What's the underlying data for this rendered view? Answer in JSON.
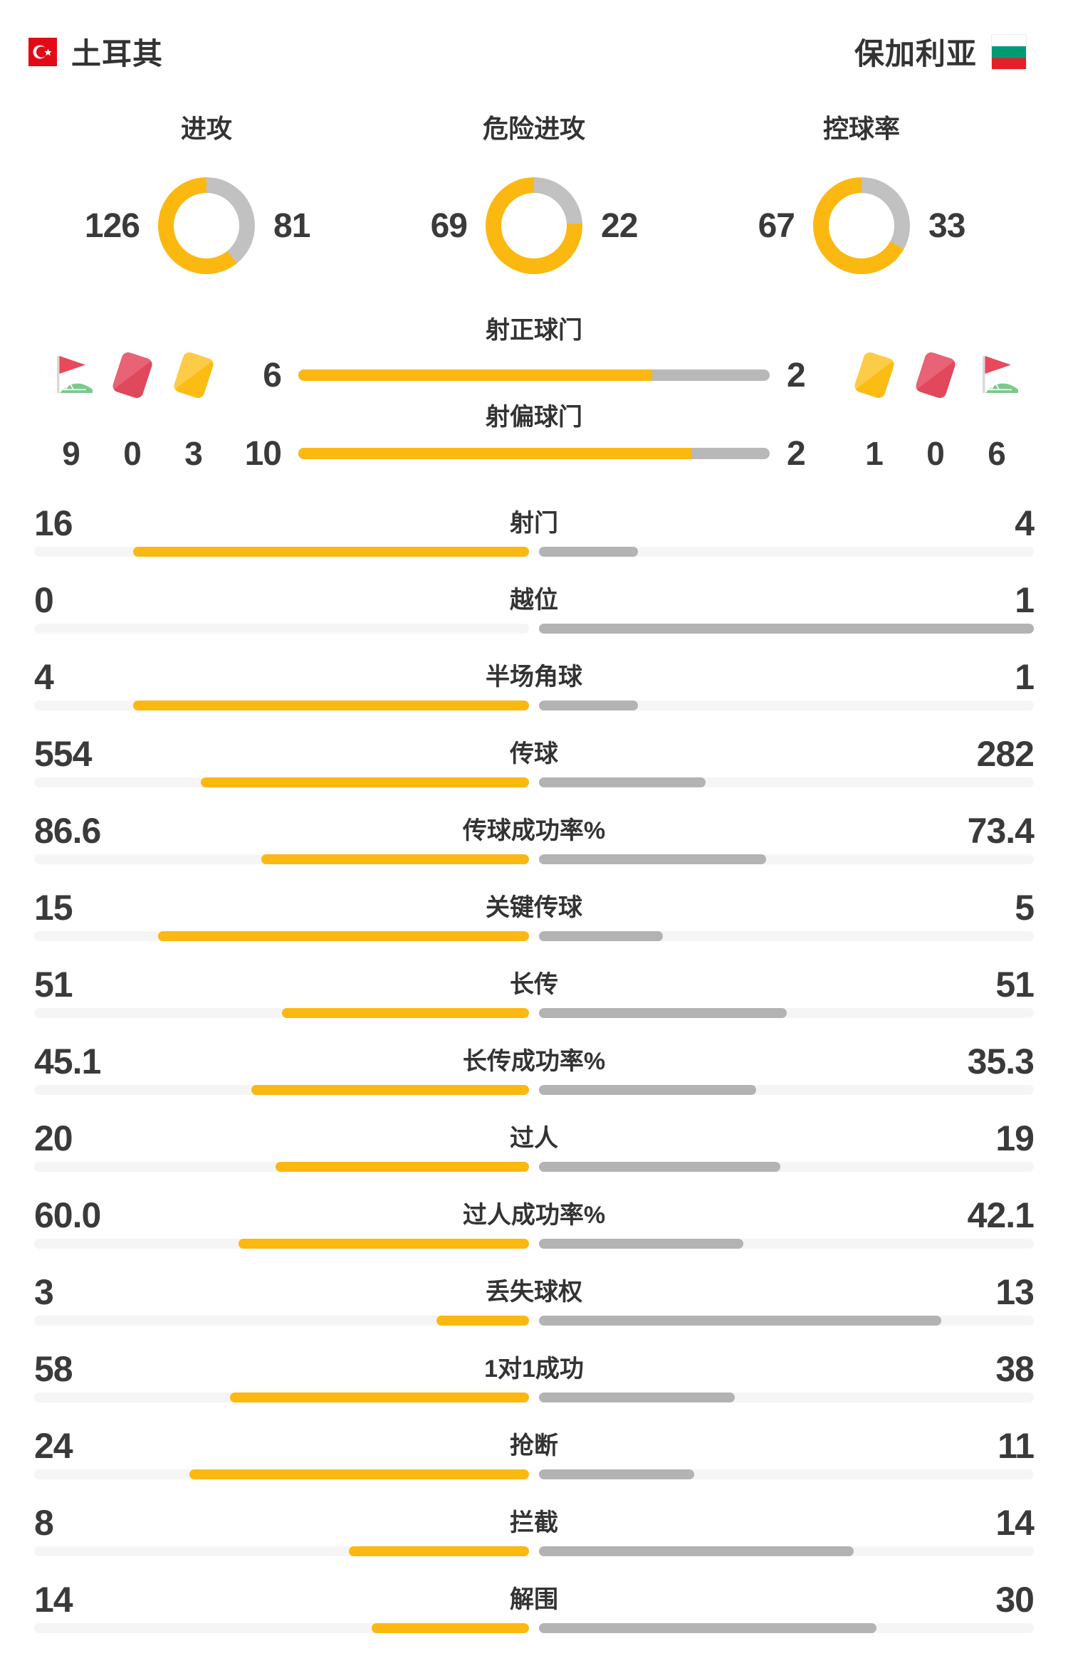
{
  "header": {
    "home_team": "土耳其",
    "away_team": "保加利亚"
  },
  "colors": {
    "home_accent": "#FBB810",
    "away_donut": "#C1C1C1",
    "away_bar": "#B3B3B3",
    "track": "#F5F5F5",
    "text": "#333333",
    "red_card": "#E0485C",
    "yellow_card": "#FBBC14",
    "corner_flag_red": "#E8495B",
    "corner_flag_green": "#7CC98E"
  },
  "chart_data": {
    "type": "bar",
    "donuts": [
      {
        "label": "进攻",
        "home": "126",
        "away": "81"
      },
      {
        "label": "危险进攻",
        "home": "69",
        "away": "22"
      },
      {
        "label": "控球率",
        "home": "67",
        "away": "33"
      }
    ],
    "shooting_bars": [
      {
        "label": "射正球门",
        "home": "6",
        "away": "2"
      },
      {
        "label": "射偏球门",
        "home": "10",
        "away": "2"
      }
    ],
    "discipline": {
      "home": {
        "icons": [
          "corner-flag",
          "red-card",
          "yellow-card"
        ],
        "values": [
          "9",
          "0",
          "3"
        ]
      },
      "away": {
        "icons": [
          "yellow-card",
          "red-card",
          "corner-flag"
        ],
        "values": [
          "1",
          "0",
          "6"
        ]
      }
    },
    "stat_rows": [
      {
        "label": "射门",
        "home": "16",
        "away": "4"
      },
      {
        "label": "越位",
        "home": "0",
        "away": "1"
      },
      {
        "label": "半场角球",
        "home": "4",
        "away": "1"
      },
      {
        "label": "传球",
        "home": "554",
        "away": "282"
      },
      {
        "label": "传球成功率%",
        "home": "86.6",
        "away": "73.4"
      },
      {
        "label": "关键传球",
        "home": "15",
        "away": "5"
      },
      {
        "label": "长传",
        "home": "51",
        "away": "51"
      },
      {
        "label": "长传成功率%",
        "home": "45.1",
        "away": "35.3"
      },
      {
        "label": "过人",
        "home": "20",
        "away": "19"
      },
      {
        "label": "过人成功率%",
        "home": "60.0",
        "away": "42.1"
      },
      {
        "label": "丢失球权",
        "home": "3",
        "away": "13"
      },
      {
        "label": "1对1成功",
        "home": "58",
        "away": "38"
      },
      {
        "label": "抢断",
        "home": "24",
        "away": "11"
      },
      {
        "label": "拦截",
        "home": "8",
        "away": "14"
      },
      {
        "label": "解围",
        "home": "14",
        "away": "30"
      }
    ]
  }
}
